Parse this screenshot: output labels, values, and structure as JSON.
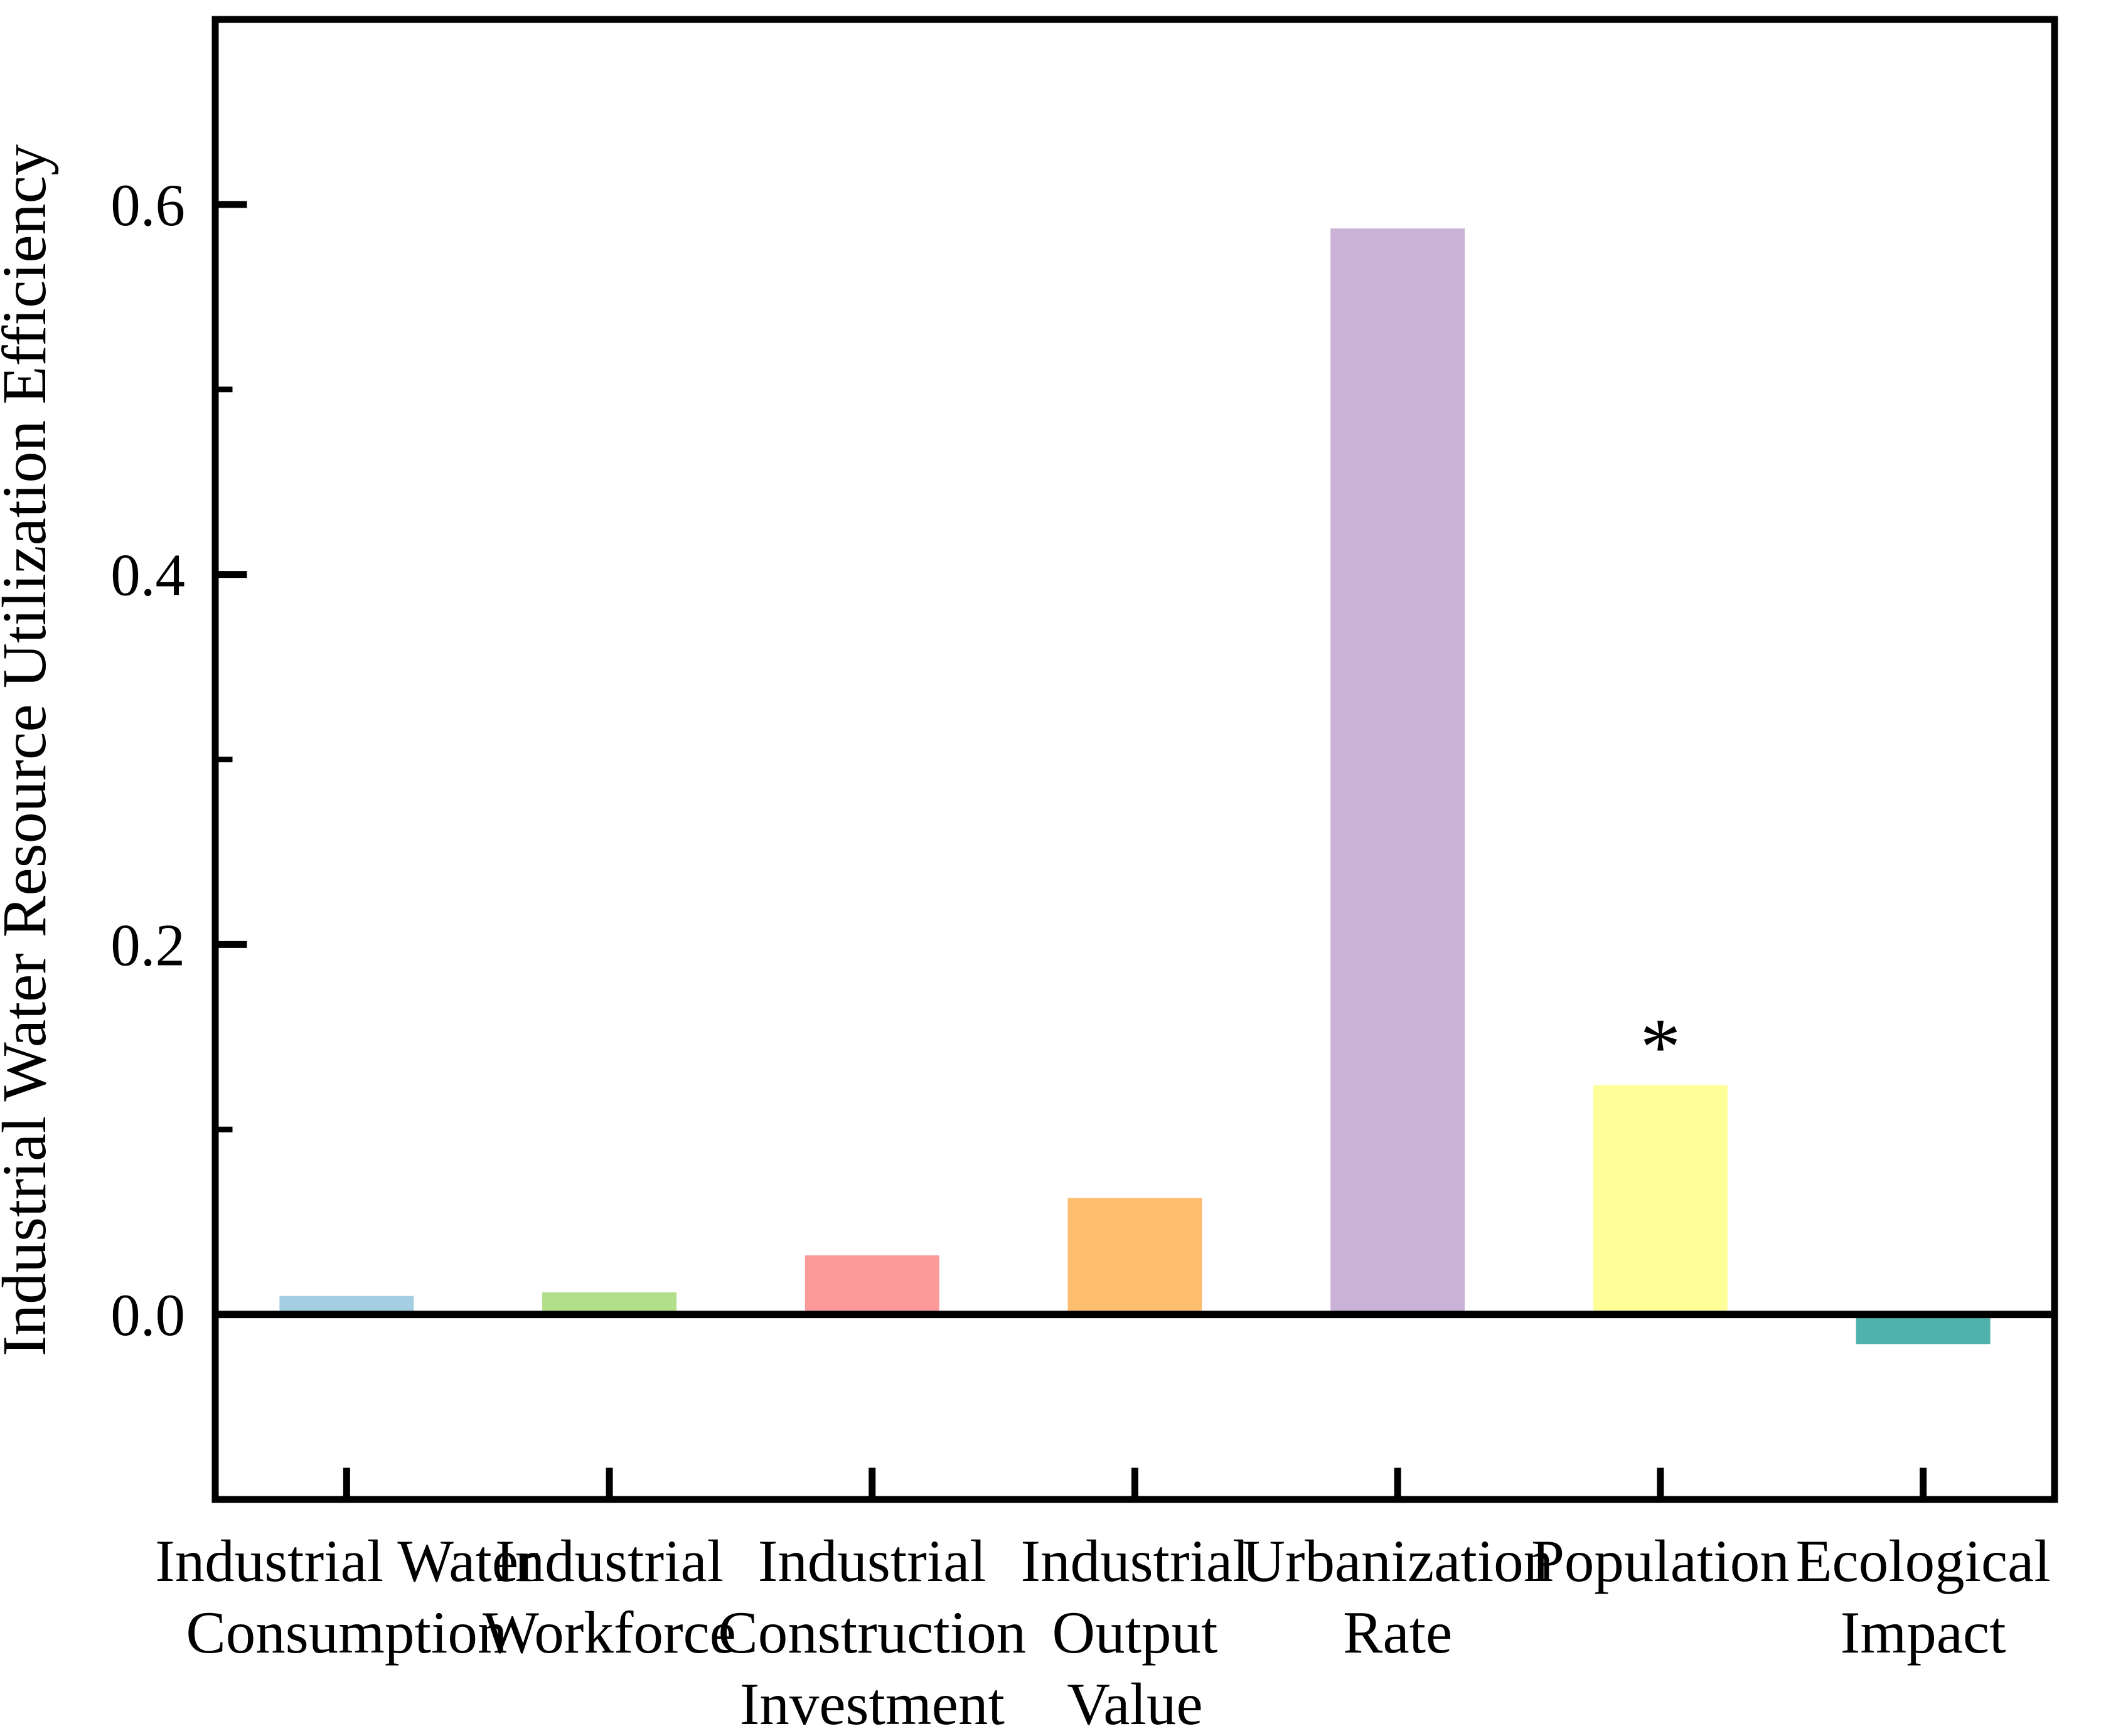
{
  "figure": {
    "background": "#ffffff",
    "axis_color": "#000000"
  },
  "chart_data": {
    "type": "bar",
    "title": "",
    "xlabel": "",
    "ylabel": "Industrial Water Resource Utilization Efficiency",
    "ylim": [
      -0.1,
      0.7
    ],
    "grid": false,
    "legend": false,
    "y_major_ticks": [
      0.0,
      0.2,
      0.4,
      0.6
    ],
    "y_tick_labels": [
      "0.0",
      "0.2",
      "0.4",
      "0.6"
    ],
    "y_minor_ticks": [
      0.1,
      0.3,
      0.5
    ],
    "baseline": 0,
    "categories": [
      "Industrial Water Consumption",
      "Industrial Workforce",
      "Industrial Construction Investment",
      "Industrial Output Value",
      "Urbanization Rate",
      "Population",
      "Ecological Impact"
    ],
    "category_label_lines": [
      [
        "Industrial Water",
        "Consumption"
      ],
      [
        "Industrial",
        "Workforce"
      ],
      [
        "Industrial",
        "Construction",
        "Investment"
      ],
      [
        "Industrial",
        "Output",
        "Value"
      ],
      [
        "Urbanization",
        "Rate"
      ],
      [
        "Population"
      ],
      [
        "Ecological",
        "Impact"
      ]
    ],
    "values": [
      0.01,
      0.012,
      0.032,
      0.063,
      0.587,
      0.124,
      -0.016
    ],
    "bar_colors": [
      "#a6cee3",
      "#b2df8a",
      "#fb9a99",
      "#fdbf6f",
      "#cab2d6",
      "#ffff99",
      "#50b2ac"
    ],
    "annotations": [
      {
        "category_index": 5,
        "text": "*"
      }
    ]
  }
}
